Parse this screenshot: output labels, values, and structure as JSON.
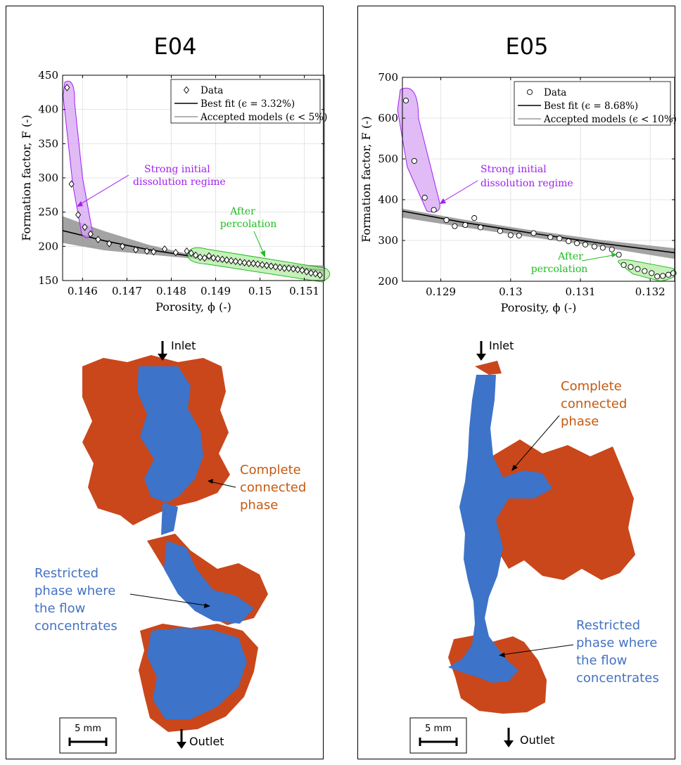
{
  "panels": [
    {
      "title": "E04",
      "annotations": {
        "strong": [
          "Strong initial",
          "dissolution regime"
        ],
        "after": [
          "After",
          "percolation"
        ]
      },
      "image": {
        "inlet": "Inlet",
        "outlet": "Outlet",
        "scale_bar": "5 mm",
        "complete_label": [
          "Complete",
          "connected",
          "phase"
        ],
        "restricted_label": [
          "Restricted",
          "phase where",
          "the flow",
          "concentrates"
        ]
      }
    },
    {
      "title": "E05",
      "annotations": {
        "strong": [
          "Strong initial",
          "dissolution regime"
        ],
        "after": [
          "After",
          "percolation"
        ]
      },
      "image": {
        "inlet": "Inlet",
        "outlet": "Outlet",
        "scale_bar": "5 mm",
        "complete_label": [
          "Complete",
          "connected",
          "phase"
        ],
        "restricted_label": [
          "Restricted",
          "phase where",
          "the flow",
          "concentrates"
        ]
      }
    }
  ],
  "chart_data": [
    {
      "type": "scatter",
      "title": "E04",
      "xlabel": "Porosity, ϕ (-)",
      "ylabel": "Formation factor, F (-)",
      "xlim": [
        0.14555,
        0.15145
      ],
      "ylim": [
        150,
        450
      ],
      "xticks": [
        0.146,
        0.147,
        0.148,
        0.149,
        0.15,
        0.151
      ],
      "xtick_labels": [
        "0.146",
        "0.147",
        "0.148",
        "0.149",
        "0.15",
        "0.151"
      ],
      "yticks": [
        150,
        200,
        250,
        300,
        350,
        400,
        450
      ],
      "grid": true,
      "legend_position": "top-right",
      "legend": [
        {
          "marker": "diamond",
          "label": "Data"
        },
        {
          "marker": "line-black",
          "label": "Best fit (ϵ = 3.32%)"
        },
        {
          "marker": "line-gray",
          "label": "Accepted models (ϵ < 5%)"
        }
      ],
      "marker": "diamond",
      "series": [
        {
          "name": "Data",
          "x": [
            0.14565,
            0.14575,
            0.1459,
            0.14605,
            0.14618,
            0.14635,
            0.1466,
            0.1469,
            0.1472,
            0.14745,
            0.1476,
            0.14785,
            0.1481,
            0.14835,
            0.14845,
            0.14855,
            0.14865,
            0.14875,
            0.14885,
            0.14895,
            0.14905,
            0.14915,
            0.14925,
            0.14935,
            0.14945,
            0.14955,
            0.14965,
            0.14975,
            0.14985,
            0.14995,
            0.15005,
            0.15015,
            0.15025,
            0.15035,
            0.15045,
            0.15055,
            0.15065,
            0.15075,
            0.15085,
            0.15095,
            0.15105,
            0.15115,
            0.15125,
            0.15135
          ],
          "y": [
            432,
            291,
            246,
            228,
            218,
            210,
            204,
            200,
            195,
            193,
            192,
            196,
            191,
            193,
            190,
            187,
            184,
            183,
            186,
            183,
            182,
            181,
            180,
            179,
            178,
            177,
            176,
            175,
            175,
            174,
            173,
            172,
            171,
            170,
            169,
            168,
            168,
            167,
            166,
            165,
            163,
            161,
            160,
            158
          ]
        },
        {
          "name": "Best fit (ϵ = 3.32%)",
          "x": [
            0.14555,
            0.1465,
            0.1475,
            0.1485,
            0.1495,
            0.1505,
            0.15145
          ],
          "y": [
            223,
            208,
            195,
            185,
            177,
            170,
            165
          ]
        }
      ],
      "accepted_band": {
        "x": [
          0.14555,
          0.1465,
          0.1475,
          0.1485,
          0.1495,
          0.1505,
          0.15145
        ],
        "upper": [
          244,
          222,
          202,
          187,
          178,
          174,
          172
        ],
        "lower": [
          205,
          194,
          188,
          182,
          174,
          166,
          158
        ]
      }
    },
    {
      "type": "scatter",
      "title": "E05",
      "xlabel": "Porosity, ϕ (-)",
      "ylabel": "Formation factor, F (-)",
      "xlim": [
        0.12845,
        0.13235
      ],
      "ylim": [
        200,
        700
      ],
      "xticks": [
        0.129,
        0.13,
        0.131,
        0.132
      ],
      "xtick_labels": [
        "0.129",
        "0.13",
        "0.131",
        "0.132"
      ],
      "yticks": [
        200,
        300,
        400,
        500,
        600,
        700
      ],
      "grid": true,
      "legend_position": "top-right",
      "legend": [
        {
          "marker": "circle",
          "label": "Data"
        },
        {
          "marker": "line-black",
          "label": "Best fit (ϵ = 8.68%)"
        },
        {
          "marker": "line-gray",
          "label": "Accepted models (ϵ < 10%)"
        }
      ],
      "marker": "circle",
      "series": [
        {
          "name": "Data",
          "x": [
            0.1285,
            0.12862,
            0.12877,
            0.1289,
            0.12908,
            0.1292,
            0.12935,
            0.12948,
            0.12957,
            0.12985,
            0.13,
            0.13012,
            0.13033,
            0.13057,
            0.1307,
            0.13083,
            0.13095,
            0.13107,
            0.1312,
            0.13132,
            0.13145,
            0.13155,
            0.13162,
            0.13172,
            0.13182,
            0.13192,
            0.13202,
            0.1321,
            0.13218,
            0.13226,
            0.13233
          ],
          "y": [
            643,
            495,
            405,
            375,
            350,
            335,
            338,
            355,
            332,
            323,
            313,
            312,
            318,
            308,
            305,
            298,
            293,
            290,
            285,
            282,
            278,
            265,
            240,
            235,
            230,
            225,
            220,
            212,
            213,
            216,
            220
          ]
        },
        {
          "name": "Best fit (ϵ = 8.68%)",
          "x": [
            0.12845,
            0.1293,
            0.1303,
            0.1313,
            0.1323,
            0.13235
          ],
          "y": [
            372,
            345,
            318,
            293,
            271,
            270
          ]
        }
      ],
      "accepted_band": {
        "x": [
          0.12845,
          0.1293,
          0.1303,
          0.1313,
          0.1323,
          0.13235
        ],
        "upper": [
          378,
          352,
          325,
          301,
          282,
          281
        ],
        "lower": [
          356,
          333,
          308,
          284,
          256,
          255
        ]
      }
    }
  ],
  "colors": {
    "purple": "#a020f0",
    "purple_fill": "#d6a4f3",
    "green": "#22bb22",
    "green_fill": "#b4eba4",
    "blue_phase": "#3d73c9",
    "orange_phase": "#c9471b",
    "orange_label": "#c55a11",
    "blue_label": "#4472c4",
    "band": "#8c8c8c"
  }
}
